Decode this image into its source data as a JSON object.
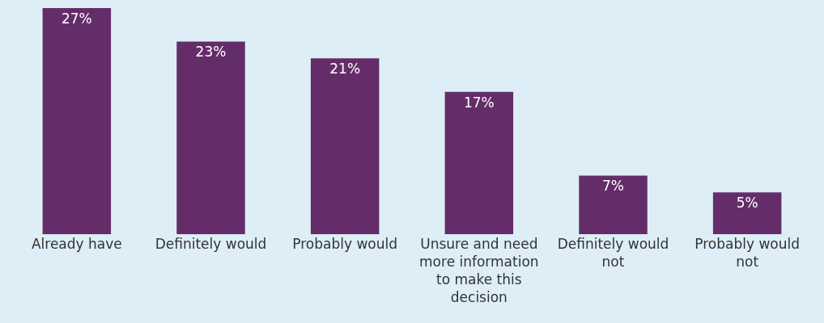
{
  "chart_data": {
    "type": "bar",
    "categories": [
      "Already have",
      "Definitely would",
      "Probably would",
      "Unsure and need more information to make this decision",
      "Definitely would not",
      "Probably would not"
    ],
    "values": [
      27,
      23,
      21,
      17,
      7,
      5
    ],
    "value_labels": [
      "27%",
      "23%",
      "21%",
      "17%",
      "7%",
      "5%"
    ],
    "color": "#642d6a"
  }
}
